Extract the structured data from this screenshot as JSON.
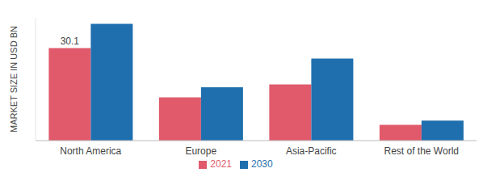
{
  "chart_data": {
    "type": "bar",
    "y_label": "MARKET SIZE IN USD BN",
    "categories": [
      "North America",
      "Europe",
      "Asia-Pacific",
      "Rest of the World"
    ],
    "series": [
      {
        "name": "2021",
        "color": "#e05a6b",
        "values": [
          30.1,
          14.1,
          18.3,
          5.1
        ],
        "value_labels": [
          "30.1",
          null,
          null,
          null
        ]
      },
      {
        "name": "2030",
        "color": "#1f6fae",
        "values": [
          38.0,
          17.4,
          26.7,
          6.5
        ]
      }
    ],
    "ylim": [
      0,
      40
    ],
    "grid": false,
    "legend": "bottom",
    "tick_labels": "x"
  }
}
